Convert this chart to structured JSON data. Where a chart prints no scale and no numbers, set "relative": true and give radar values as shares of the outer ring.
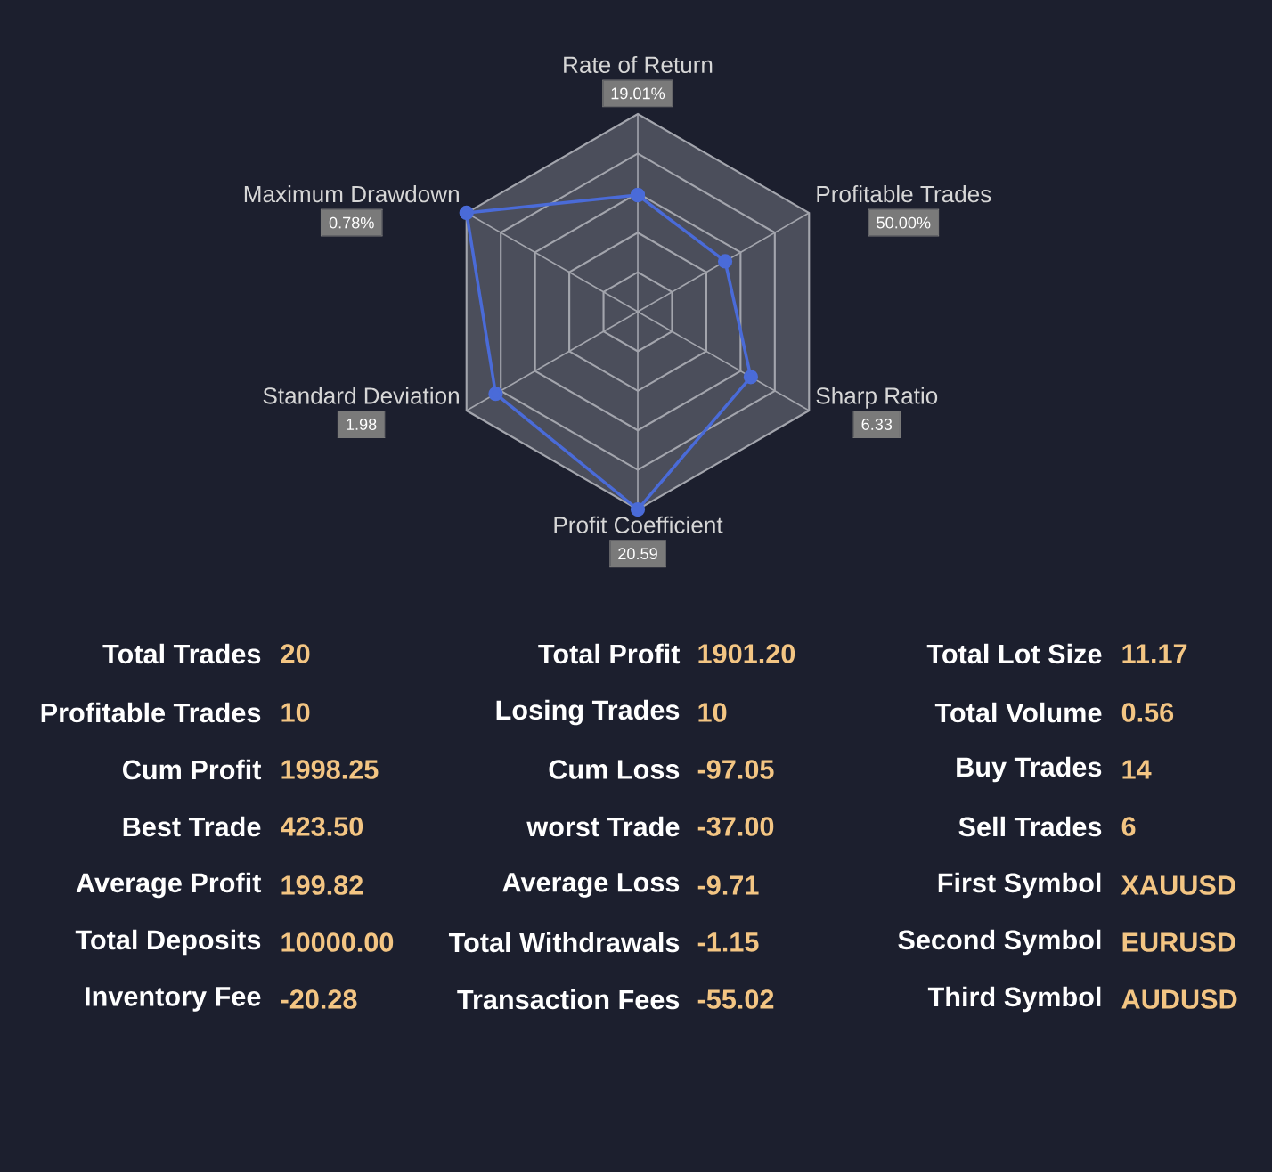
{
  "chart_data": {
    "type": "radar",
    "relative": true,
    "grid": true,
    "marker": "circle",
    "categories": [
      "Rate of Return",
      "Profitable Trades",
      "Sharp Ratio",
      "Profit Coefficient",
      "Standard Deviation",
      "Maximum Drawdown"
    ],
    "series": [
      {
        "color": "#4a6bd8",
        "values": [
          0.59,
          0.51,
          0.66,
          1.0,
          0.83,
          1.0
        ]
      }
    ],
    "annotations": [
      "19.01%",
      "50.00%",
      "6.33",
      "20.59",
      "1.98",
      "0.78%",
      "Total Trades",
      "20",
      "Profitable Trades",
      "10",
      "Cum Profit",
      "1998.25",
      "Best Trade",
      "423.50",
      "Average Profit",
      "199.82",
      "Total Deposits",
      "10000.00",
      "Inventory Fee",
      "-20.28",
      "Total Profit",
      "1901.20",
      "Losing Trades",
      "10",
      "Cum Loss",
      "-97.05",
      "worst Trade",
      "-37.00",
      "Average Loss",
      "-9.71",
      "Total Withdrawals",
      "-1.15",
      "Transaction Fees",
      "-55.02",
      "Total Lot Size",
      "11.17",
      "Total Volume",
      "0.56",
      "Buy Trades",
      "14",
      "Sell Trades",
      "6",
      "First Symbol",
      "XAUUSD",
      "Second Symbol",
      "EURUSD",
      "Third Symbol",
      "AUDUSD"
    ]
  }
}
